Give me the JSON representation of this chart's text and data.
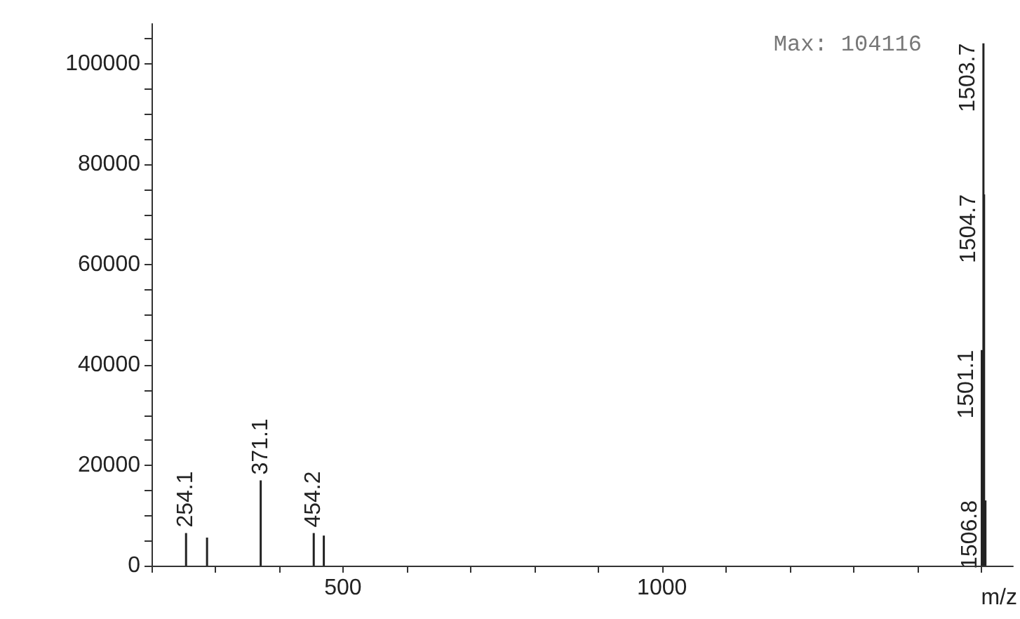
{
  "chart_data": {
    "type": "bar",
    "xlabel": "m/z",
    "annotations": [
      "Max: 104116",
      {
        "text": "254.1",
        "x": 254.1,
        "y": 6500
      },
      {
        "text": "371.1",
        "x": 371.1,
        "y": 17000
      },
      {
        "text": "454.2",
        "x": 454.2,
        "y": 6500
      },
      {
        "text": "1501.1",
        "x": 1501.1,
        "y": 43000
      },
      {
        "text": "1503.7",
        "x": 1503.7,
        "y": 104116
      },
      {
        "text": "1504.7",
        "x": 1504.7,
        "y": 74000
      },
      {
        "text": "1506.8",
        "x": 1506.8,
        "y": 13000
      }
    ],
    "x": [
      254.1,
      287,
      371.1,
      454.2,
      470,
      1501.1,
      1503.7,
      1504.7,
      1506.8
    ],
    "values": [
      6500,
      5600,
      17000,
      6500,
      6000,
      43000,
      104116,
      74000,
      13000
    ],
    "color": "#222222",
    "xlim": [
      200,
      1550
    ],
    "xticks": [
      {
        "value": 200,
        "label": null
      },
      {
        "value": 300,
        "label": null
      },
      {
        "value": 400,
        "label": null
      },
      500,
      {
        "value": 600,
        "label": null
      },
      {
        "value": 700,
        "label": null
      },
      {
        "value": 800,
        "label": null
      },
      {
        "value": 900,
        "label": null
      },
      1000,
      {
        "value": 1100,
        "label": null
      },
      {
        "value": 1200,
        "label": null
      },
      {
        "value": 1300,
        "label": null
      },
      {
        "value": 1400,
        "label": null
      },
      {
        "value": 1500,
        "label": null
      }
    ],
    "ylim": [
      0,
      108000
    ],
    "yticks": [
      0,
      {
        "value": 5000,
        "label": null
      },
      {
        "value": 10000,
        "label": null
      },
      {
        "value": 15000,
        "label": null
      },
      20000,
      {
        "value": 25000,
        "label": null
      },
      {
        "value": 30000,
        "label": null
      },
      {
        "value": 35000,
        "label": null
      },
      40000,
      {
        "value": 45000,
        "label": null
      },
      {
        "value": 50000,
        "label": null
      },
      {
        "value": 55000,
        "label": null
      },
      60000,
      {
        "value": 65000,
        "label": null
      },
      {
        "value": 70000,
        "label": null
      },
      {
        "value": 75000,
        "label": null
      },
      80000,
      {
        "value": 85000,
        "label": null
      },
      {
        "value": 90000,
        "label": null
      },
      {
        "value": 95000,
        "label": null
      },
      100000,
      {
        "value": 105000,
        "label": null
      }
    ]
  }
}
